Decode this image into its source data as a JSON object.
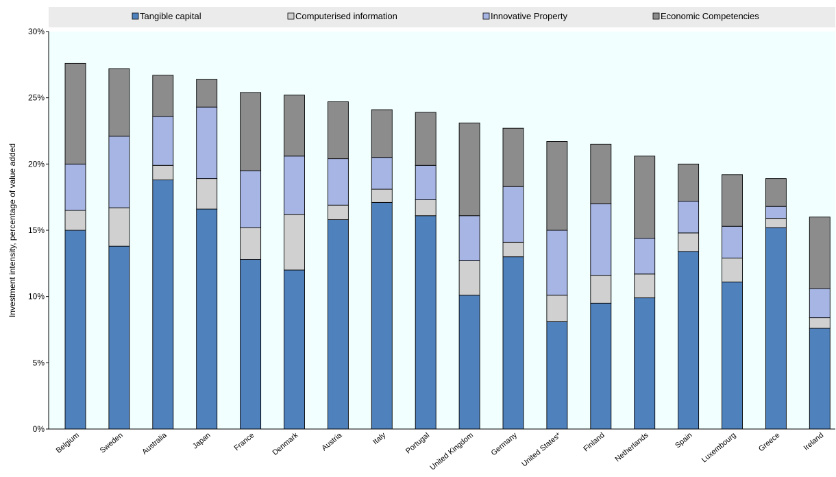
{
  "chart_data": {
    "type": "bar",
    "stacked": true,
    "title": "",
    "xlabel": "",
    "ylabel": "Investment intensity, percentage of value added",
    "ylim": [
      0,
      30
    ],
    "yticks": [
      "0%",
      "5%",
      "10%",
      "15%",
      "20%",
      "25%",
      "30%"
    ],
    "grid": false,
    "legend_position": "top",
    "categories": [
      "Belgium",
      "Sweden",
      "Australia",
      "Japan",
      "France",
      "Denmark",
      "Austria",
      "Italy",
      "Portugal",
      "United Kingdom",
      "Germany",
      "United States*",
      "Finland",
      "Netherlands",
      "Spain",
      "Luxembourg",
      "Greece",
      "Ireland"
    ],
    "series": [
      {
        "name": "Tangible capital",
        "color": "#4f81bd",
        "values": [
          15.0,
          13.8,
          18.8,
          16.6,
          12.8,
          12.0,
          15.8,
          17.1,
          16.1,
          10.1,
          13.0,
          8.1,
          9.5,
          9.9,
          13.4,
          11.1,
          15.2,
          7.6
        ]
      },
      {
        "name": "Computerised information",
        "color": "#d0d0d0",
        "values": [
          1.5,
          2.9,
          1.1,
          2.3,
          2.4,
          4.2,
          1.1,
          1.0,
          1.2,
          2.6,
          1.1,
          2.0,
          2.1,
          1.8,
          1.4,
          1.8,
          0.7,
          0.8
        ]
      },
      {
        "name": "Innovative Property",
        "color": "#a6b5e3",
        "values": [
          3.5,
          5.4,
          3.7,
          5.4,
          4.3,
          4.4,
          3.5,
          2.4,
          2.6,
          3.4,
          4.2,
          4.9,
          5.4,
          2.7,
          2.4,
          2.4,
          0.9,
          2.2
        ]
      },
      {
        "name": "Economic Competencies",
        "color": "#8c8c8c",
        "values": [
          7.6,
          5.1,
          3.1,
          2.1,
          5.9,
          4.6,
          4.3,
          3.6,
          4.0,
          7.0,
          4.4,
          6.7,
          4.5,
          6.2,
          2.8,
          3.9,
          2.1,
          5.4
        ]
      }
    ]
  }
}
